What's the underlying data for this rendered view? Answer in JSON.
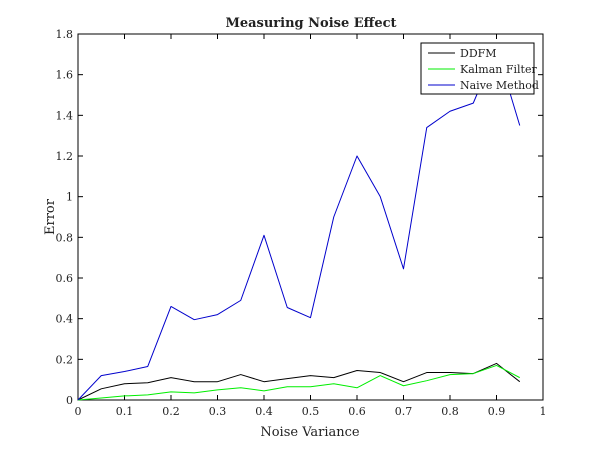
{
  "chart_data": {
    "type": "line",
    "title": "Measuring Noise Effect",
    "xlabel": "Noise Variance",
    "ylabel": "Error",
    "xlim": [
      0,
      1
    ],
    "ylim": [
      0,
      1.8
    ],
    "xticks": [
      0,
      0.1,
      0.2,
      0.3,
      0.4,
      0.5,
      0.6,
      0.7,
      0.8,
      0.9,
      1
    ],
    "xtick_labels": [
      "0",
      "0.1",
      "0.2",
      "0.3",
      "0.4",
      "0.5",
      "0.6",
      "0.7",
      "0.8",
      "0.9",
      "1"
    ],
    "yticks": [
      0,
      0.2,
      0.4,
      0.6,
      0.8,
      1,
      1.2,
      1.4,
      1.6,
      1.8
    ],
    "ytick_labels": [
      "0",
      "0.2",
      "0.4",
      "0.6",
      "0.8",
      "1",
      "1.2",
      "1.4",
      "1.6",
      "1.8"
    ],
    "grid": false,
    "legend_position": "top-right",
    "x": [
      0,
      0.05,
      0.1,
      0.15,
      0.2,
      0.25,
      0.3,
      0.35,
      0.4,
      0.45,
      0.5,
      0.55,
      0.6,
      0.65,
      0.7,
      0.75,
      0.8,
      0.85,
      0.9,
      0.95
    ],
    "series": [
      {
        "name": "DDFM",
        "color": "#000000",
        "values": [
          0,
          0.055,
          0.08,
          0.085,
          0.11,
          0.09,
          0.09,
          0.125,
          0.09,
          0.105,
          0.12,
          0.11,
          0.145,
          0.135,
          0.09,
          0.135,
          0.135,
          0.13,
          0.18,
          0.09
        ]
      },
      {
        "name": "Kalman Filter",
        "color": "#00ee00",
        "values": [
          0,
          0.01,
          0.02,
          0.025,
          0.04,
          0.035,
          0.05,
          0.06,
          0.045,
          0.065,
          0.065,
          0.08,
          0.06,
          0.12,
          0.07,
          0.095,
          0.125,
          0.13,
          0.17,
          0.11
        ]
      },
      {
        "name": "Naive Method",
        "color": "#0000cc",
        "values": [
          0,
          0.12,
          0.14,
          0.165,
          0.46,
          0.395,
          0.42,
          0.49,
          0.81,
          0.455,
          0.405,
          0.9,
          1.2,
          1.0,
          0.645,
          1.34,
          1.42,
          1.46,
          1.73,
          1.35
        ]
      }
    ]
  }
}
